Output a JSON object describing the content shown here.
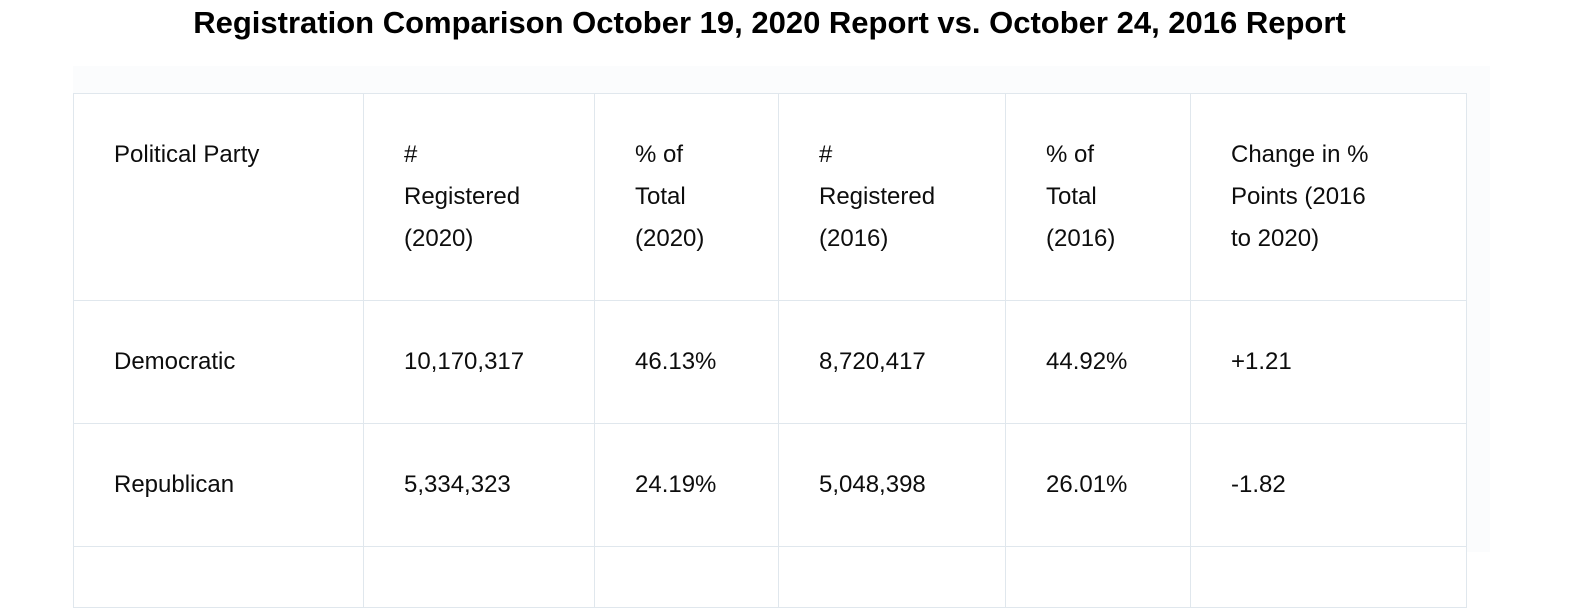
{
  "page": {
    "title": "Registration Comparison October 19, 2020 Report vs. October 24, 2016 Report"
  },
  "table": {
    "columns": [
      {
        "id": "party",
        "label": "Political Party",
        "lines": [
          "Political Party"
        ]
      },
      {
        "id": "registered_2020",
        "label": "# Registered (2020)",
        "lines": [
          "#",
          "Registered",
          "(2020)"
        ]
      },
      {
        "id": "pct_total_2020",
        "label": "% of Total (2020)",
        "lines": [
          "% of",
          "Total",
          "(2020)"
        ]
      },
      {
        "id": "registered_2016",
        "label": "# Registered (2016)",
        "lines": [
          "#",
          "Registered",
          "(2016)"
        ]
      },
      {
        "id": "pct_total_2016",
        "label": "% of Total (2016)",
        "lines": [
          "% of",
          "Total",
          "(2016)"
        ]
      },
      {
        "id": "change_pct_points",
        "label": "Change in % Points (2016 to 2020)",
        "lines": [
          "Change in %",
          "Points (2016",
          "to 2020)"
        ]
      }
    ],
    "rows": [
      {
        "party": "Democratic",
        "registered_2020": "10,170,317",
        "pct_total_2020": "46.13%",
        "registered_2016": "8,720,417",
        "pct_total_2016": "44.92%",
        "change_pct_points": "+1.21"
      },
      {
        "party": "Republican",
        "registered_2020": "5,334,323",
        "pct_total_2020": "24.19%",
        "registered_2016": "5,048,398",
        "pct_total_2016": "26.01%",
        "change_pct_points": "-1.82"
      }
    ]
  },
  "appearance": {
    "border_color": "#e0e7ed",
    "text_color": "#0d0d0d",
    "title_color": "#000000",
    "panel_background": "#fbfcfd",
    "page_background": "#ffffff"
  }
}
